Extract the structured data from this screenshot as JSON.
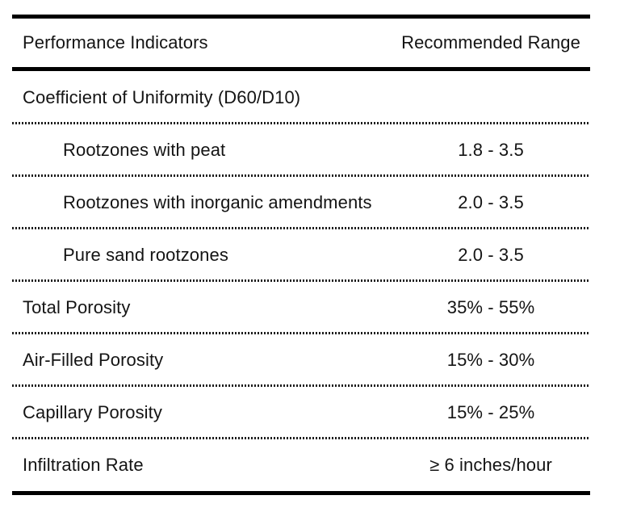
{
  "table": {
    "columns": {
      "left": "Performance Indicators",
      "right": "Recommended Range"
    },
    "rows": [
      {
        "label": "Coefficient of Uniformity (D60/D10)",
        "value": "",
        "indent": false
      },
      {
        "label": "Rootzones with peat",
        "value": "1.8 - 3.5",
        "indent": true
      },
      {
        "label": "Rootzones with inorganic amendments",
        "value": "2.0 - 3.5",
        "indent": true
      },
      {
        "label": "Pure sand rootzones",
        "value": "2.0 - 3.5",
        "indent": true
      },
      {
        "label": "Total Porosity",
        "value": "35% - 55%",
        "indent": false
      },
      {
        "label": "Air-Filled Porosity",
        "value": "15% - 30%",
        "indent": false
      },
      {
        "label": "Capillary Porosity",
        "value": "15% - 25%",
        "indent": false
      },
      {
        "label": "Infiltration Rate",
        "value": "≥ 6 inches/hour",
        "indent": false
      }
    ]
  },
  "colors": {
    "text": "#141414",
    "rule": "#000000",
    "background": "#ffffff"
  }
}
